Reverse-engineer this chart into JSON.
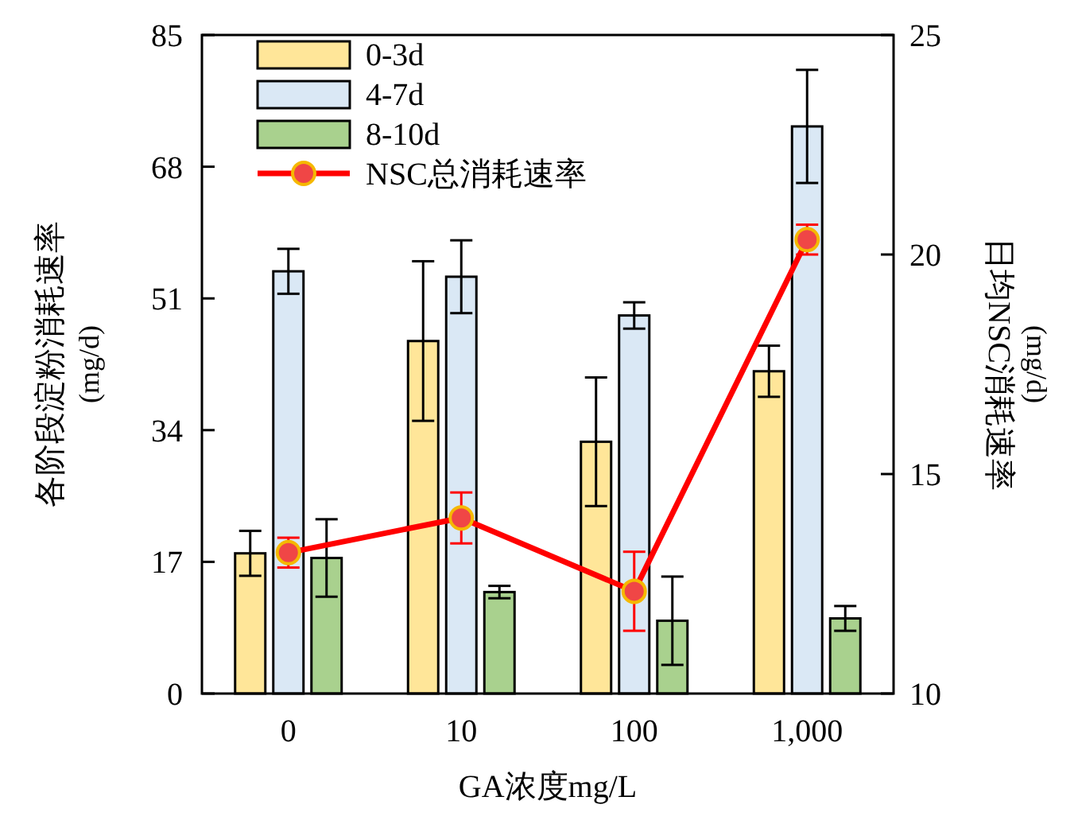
{
  "chart_data": {
    "type": "bar",
    "xlabel": "GA浓度mg/L",
    "ylabel": "各阶段淀粉消耗速率\n(mg/d)",
    "y2label": "日均NSC消耗速率\n(mg/d)",
    "categories": [
      "0",
      "10",
      "100",
      "1,000"
    ],
    "series": [
      {
        "name": "0-3d",
        "color": "#ffe699",
        "values": [
          18.1,
          45.5,
          32.5,
          41.6
        ],
        "errors": [
          2.9,
          10.3,
          8.3,
          3.3
        ]
      },
      {
        "name": "4-7d",
        "color": "#dae8f5",
        "values": [
          54.5,
          53.8,
          48.8,
          73.2
        ],
        "errors": [
          2.9,
          4.7,
          1.7,
          7.3
        ]
      },
      {
        "name": "8-10d",
        "color": "#a9d18e",
        "values": [
          17.5,
          13.1,
          9.4,
          9.7
        ],
        "errors": [
          5.0,
          0.8,
          5.7,
          1.6
        ]
      },
      {
        "name": "NSC总消耗速率",
        "type": "line",
        "axis": "y2",
        "color": "#ff0000",
        "marker": "circle",
        "values": [
          13.21,
          14.0,
          12.33,
          20.34
        ],
        "errors": [
          0.34,
          0.58,
          0.9,
          0.34
        ]
      }
    ],
    "ylim": [
      0,
      85
    ],
    "yticks": [
      0,
      17,
      34,
      51,
      68,
      85
    ],
    "y2lim": [
      10,
      25
    ],
    "y2ticks": [
      10,
      15,
      20,
      25
    ],
    "legend": "top left",
    "grid": false
  }
}
